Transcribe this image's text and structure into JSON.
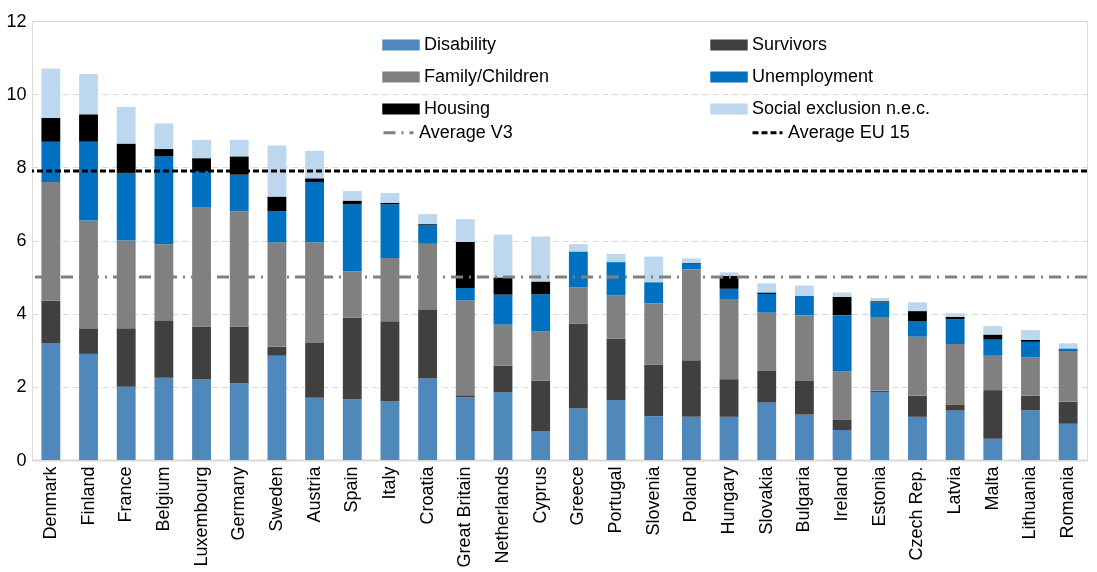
{
  "chart_data": {
    "type": "bar",
    "stacked": true,
    "categories": [
      "Denmark",
      "Finland",
      "France",
      "Belgium",
      "Luxembourg",
      "Germany",
      "Sweden",
      "Austria",
      "Spain",
      "Italy",
      "Croatia",
      "Great Britain",
      "Netherlands",
      "Cyprus",
      "Greece",
      "Portugal",
      "Slovenia",
      "Poland",
      "Hungary",
      "Slovakia",
      "Bulgaria",
      "Ireland",
      "Estonia",
      "Czech Rep.",
      "Latvia",
      "Malta",
      "Lithuania",
      "Romania"
    ],
    "series": [
      {
        "name": "Disability",
        "color": "#4f88bb",
        "values": [
          3.2,
          2.9,
          2.0,
          2.25,
          2.2,
          2.1,
          2.85,
          1.7,
          1.66,
          1.6,
          2.23,
          1.71,
          1.85,
          0.78,
          1.41,
          1.64,
          1.2,
          1.18,
          1.18,
          1.57,
          1.24,
          0.82,
          1.86,
          1.18,
          1.35,
          0.58,
          1.36,
          0.99
        ]
      },
      {
        "name": "Survivors",
        "color": "#404040",
        "values": [
          1.15,
          0.7,
          1.6,
          1.55,
          1.45,
          1.55,
          0.25,
          1.5,
          2.23,
          2.19,
          1.87,
          0.06,
          0.73,
          1.39,
          2.31,
          1.67,
          1.41,
          1.55,
          1.03,
          0.88,
          0.92,
          0.29,
          0.03,
          0.58,
          0.17,
          1.33,
          0.4,
          0.6
        ]
      },
      {
        "name": "Family/Children",
        "color": "#808080",
        "values": [
          3.25,
          2.95,
          2.4,
          2.1,
          3.25,
          3.15,
          2.85,
          2.75,
          1.26,
          1.73,
          1.81,
          2.59,
          1.12,
          1.34,
          1.0,
          1.19,
          1.67,
          2.48,
          2.19,
          1.58,
          1.8,
          1.31,
          2.02,
          1.61,
          1.65,
          0.94,
          1.05,
          1.39
        ]
      },
      {
        "name": "Unemployment",
        "color": "#0070c0",
        "values": [
          1.1,
          2.15,
          1.85,
          2.4,
          1.0,
          1.0,
          0.85,
          1.65,
          1.84,
          1.47,
          0.52,
          0.34,
          0.82,
          1.02,
          0.98,
          0.91,
          0.58,
          0.16,
          0.28,
          0.51,
          0.53,
          1.54,
          0.4,
          0.43,
          0.68,
          0.44,
          0.42,
          0.07
        ]
      },
      {
        "name": "Housing",
        "color": "#000000",
        "values": [
          0.65,
          0.75,
          0.8,
          0.2,
          0.35,
          0.5,
          0.4,
          0.1,
          0.1,
          0.04,
          0.02,
          1.26,
          0.47,
          0.35,
          null,
          null,
          null,
          0.02,
          0.35,
          0.04,
          0.0,
          0.5,
          0.03,
          0.27,
          0.06,
          0.14,
          0.05,
          null
        ]
      },
      {
        "name": "Social exclusion n.e.c.",
        "color": "#bdd7ee",
        "values": [
          1.35,
          1.1,
          1.0,
          0.7,
          0.5,
          0.45,
          1.4,
          0.75,
          0.26,
          0.27,
          0.27,
          0.62,
          1.17,
          1.23,
          0.2,
          0.22,
          0.7,
          0.12,
          0.1,
          0.25,
          0.28,
          0.12,
          0.09,
          0.24,
          0.1,
          0.23,
          0.27,
          0.14
        ]
      }
    ],
    "ylim": [
      0,
      12
    ],
    "yticks": [
      0,
      2,
      4,
      6,
      8,
      10,
      12
    ],
    "grid": "y",
    "legend": "top right",
    "ref_lines": [
      {
        "axis": "y",
        "value": 5.0,
        "label": "Average V3",
        "color": "#808080",
        "line_style": "dashdot"
      },
      {
        "axis": "y",
        "value": 7.9,
        "label": "Average EU 15",
        "color": "#000000",
        "line_style": "dashed"
      }
    ]
  }
}
